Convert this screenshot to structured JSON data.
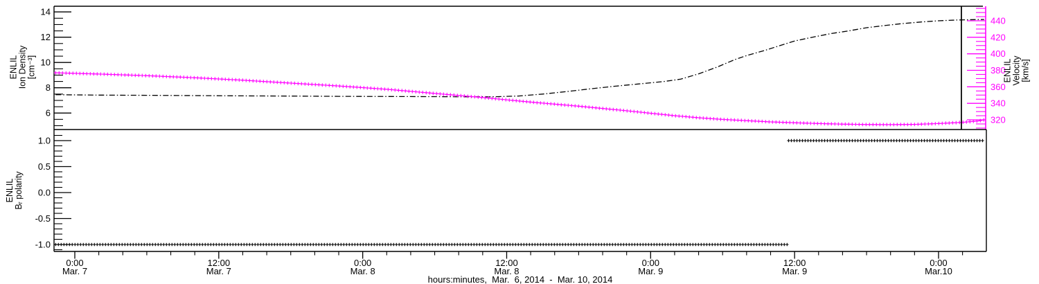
{
  "colors": {
    "velocity_magenta": "#ff00ff",
    "line_black": "#000000",
    "background": "#ffffff"
  },
  "x_axis": {
    "title": "hours:minutes,  Mar.  6, 2014  -  Mar. 10, 2014",
    "unit": "hours since Mar 6, 2014 00:00",
    "range_hours": [
      22.4,
      100.1
    ],
    "minor_step_hours": 2,
    "major_ticks": [
      {
        "hours": 24,
        "time": "0:00",
        "date": "Mar. 7"
      },
      {
        "hours": 36,
        "time": "12:00",
        "date": "Mar. 7"
      },
      {
        "hours": 48,
        "time": "0:00",
        "date": "Mar. 8"
      },
      {
        "hours": 60,
        "time": "12:00",
        "date": "Mar. 8"
      },
      {
        "hours": 72,
        "time": "0:00",
        "date": "Mar. 9"
      },
      {
        "hours": 84,
        "time": "12:00",
        "date": "Mar. 9"
      },
      {
        "hours": 96,
        "time": "0:00",
        "date": "Mar.10"
      }
    ]
  },
  "chart_data": [
    {
      "id": "top_panel",
      "type": "line",
      "title": "",
      "left_axis": {
        "label": "ENLIL Ion Density [cm⁻³]",
        "label_lines": [
          "ENLIL",
          "Ion Density",
          "[cm⁻³]"
        ],
        "tick_values": [
          14,
          12,
          10,
          8,
          6
        ],
        "tick_labels": [
          "14",
          "12",
          "10",
          "8",
          "6"
        ],
        "range": [
          4.55,
          14.55
        ],
        "minor_step": 0.5
      },
      "right_axis": {
        "label": "ENLIL Velocity [km/s]",
        "label_lines": [
          "ENLIL",
          "Velocity",
          "[km/s]"
        ],
        "tick_values": [
          440,
          420,
          400,
          380,
          360,
          340,
          320
        ],
        "tick_labels": [
          "440",
          "420",
          "400",
          "380",
          "360",
          "340",
          "320"
        ],
        "range": [
          308,
          458
        ],
        "minor_step": 5,
        "color": "#ff00ff"
      },
      "marker_line_hours": 97.9,
      "series": [
        {
          "name": "ENLIL Ion Density",
          "axis": "left",
          "color": "#000000",
          "style": "dash-dot",
          "points": [
            [
              22.4,
              7.45
            ],
            [
              26,
              7.42
            ],
            [
              30,
              7.4
            ],
            [
              34,
              7.38
            ],
            [
              38,
              7.36
            ],
            [
              42,
              7.34
            ],
            [
              46,
              7.32
            ],
            [
              50,
              7.31
            ],
            [
              54,
              7.3
            ],
            [
              57,
              7.28
            ],
            [
              59,
              7.29
            ],
            [
              61,
              7.35
            ],
            [
              63,
              7.5
            ],
            [
              65,
              7.7
            ],
            [
              67,
              7.92
            ],
            [
              69,
              8.12
            ],
            [
              71,
              8.3
            ],
            [
              73,
              8.48
            ],
            [
              74.5,
              8.68
            ],
            [
              76,
              9.1
            ],
            [
              77.5,
              9.62
            ],
            [
              79,
              10.22
            ],
            [
              80,
              10.55
            ],
            [
              81.5,
              10.95
            ],
            [
              83,
              11.4
            ],
            [
              84,
              11.7
            ],
            [
              85.5,
              12.0
            ],
            [
              87,
              12.28
            ],
            [
              88.5,
              12.5
            ],
            [
              90,
              12.75
            ],
            [
              91.5,
              12.92
            ],
            [
              93,
              13.08
            ],
            [
              94.5,
              13.2
            ],
            [
              96,
              13.3
            ],
            [
              97.5,
              13.36
            ],
            [
              99,
              13.39
            ],
            [
              99.8,
              13.4
            ]
          ]
        },
        {
          "name": "ENLIL Velocity",
          "axis": "right",
          "color": "#ff00ff",
          "style": "plus-markers",
          "points": [
            [
              22.4,
              377
            ],
            [
              26,
              375.5
            ],
            [
              30,
              373.5
            ],
            [
              34,
              371
            ],
            [
              38,
              368
            ],
            [
              42,
              364.5
            ],
            [
              46,
              361
            ],
            [
              50,
              357
            ],
            [
              54,
              352
            ],
            [
              58,
              347
            ],
            [
              62,
              341.5
            ],
            [
              66,
              336.5
            ],
            [
              70,
              331
            ],
            [
              72,
              328
            ],
            [
              74,
              325
            ],
            [
              76,
              322.5
            ],
            [
              78,
              320.5
            ],
            [
              80,
              319
            ],
            [
              82,
              317.5
            ],
            [
              84,
              316.5
            ],
            [
              86,
              315.5
            ],
            [
              88,
              314.8
            ],
            [
              90,
              314.3
            ],
            [
              92,
              314.2
            ],
            [
              94,
              314.5
            ],
            [
              96,
              315.5
            ],
            [
              98,
              317
            ],
            [
              99.3,
              318.5
            ],
            [
              99.8,
              320
            ]
          ]
        }
      ]
    },
    {
      "id": "bottom_panel",
      "type": "line",
      "title": "",
      "left_axis": {
        "label": "ENLIL Bᵣ polarity",
        "label_lines": [
          "ENLIL",
          "Bᵣ polarity"
        ],
        "tick_values": [
          1.0,
          0.5,
          0.0,
          -0.5,
          -1.0
        ],
        "tick_labels": [
          "1.0",
          "0.5",
          "0.0",
          "-0.5",
          "-1.0"
        ],
        "range": [
          -1.13,
          1.21
        ],
        "minor_step": 0.1
      },
      "series": [
        {
          "name": "ENLIL Br polarity",
          "axis": "left",
          "color": "#000000",
          "style": "plus-markers",
          "segments": [
            {
              "value": -1,
              "from_hours": 22.4,
              "to_hours": 83.5
            },
            {
              "value": 1,
              "from_hours": 83.5,
              "to_hours": 99.8
            }
          ]
        }
      ]
    }
  ]
}
